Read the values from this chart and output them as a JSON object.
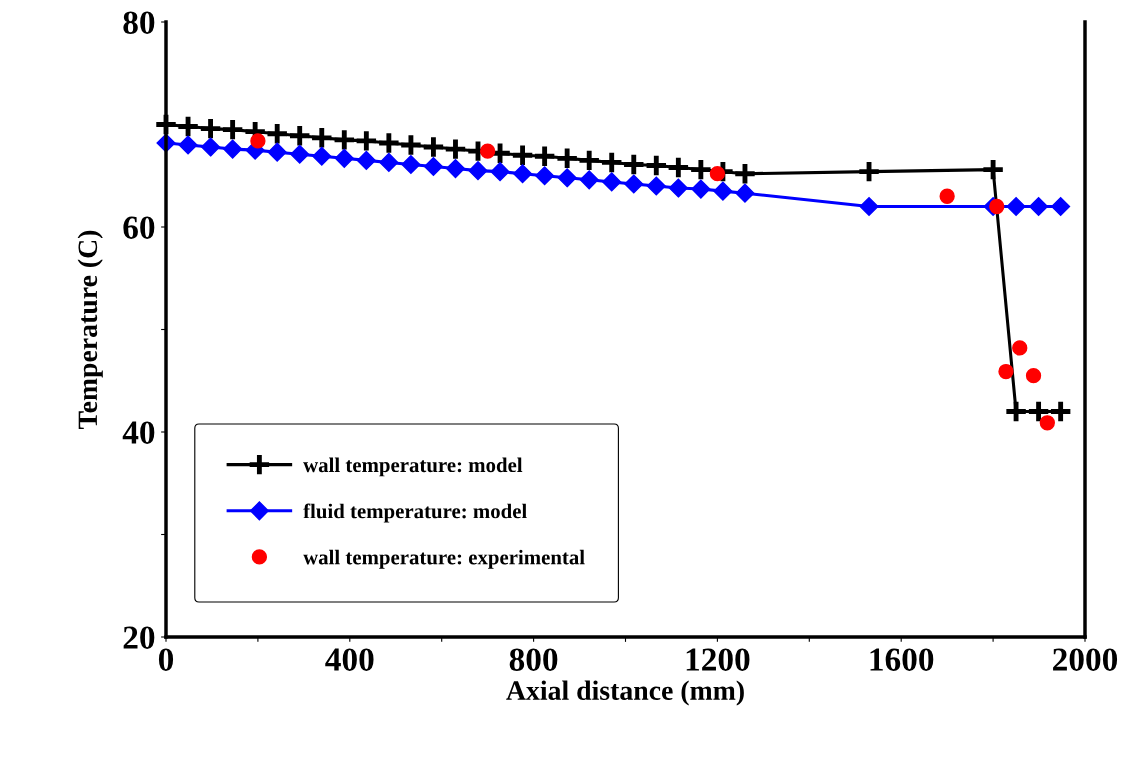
{
  "chart_data": {
    "type": "line",
    "xlabel": "Axial distance (mm)",
    "ylabel": "Temperature (C)",
    "xlim": [
      0,
      2000
    ],
    "ylim": [
      20,
      80
    ],
    "xticks": [
      0,
      {
        "value": 200,
        "label": null
      },
      400,
      {
        "value": 600,
        "label": null
      },
      800,
      {
        "value": 1000,
        "label": null
      },
      1200,
      {
        "value": 1400,
        "label": null
      },
      1600,
      {
        "value": 1800,
        "label": null
      },
      2000
    ],
    "yticks": [
      20,
      {
        "value": 30,
        "label": null
      },
      40,
      {
        "value": 50,
        "label": null
      },
      60,
      {
        "value": 70,
        "label": null
      },
      80
    ],
    "grid": false,
    "legend": "bottom left",
    "series": [
      {
        "name": "wall temperature: model",
        "color": "#000000",
        "marker": "cross",
        "x": [
          0,
          48,
          97,
          145,
          194,
          242,
          291,
          339,
          388,
          436,
          485,
          533,
          582,
          630,
          679,
          727,
          776,
          824,
          873,
          921,
          970,
          1018,
          1067,
          1115,
          1164,
          1212,
          1260,
          1530,
          1800,
          1850,
          1899,
          1947
        ],
        "values": [
          70.0,
          69.8,
          69.6,
          69.5,
          69.3,
          69.1,
          68.9,
          68.7,
          68.5,
          68.4,
          68.2,
          68.0,
          67.8,
          67.6,
          67.4,
          67.2,
          67.0,
          66.9,
          66.7,
          66.5,
          66.3,
          66.1,
          66.0,
          65.8,
          65.6,
          65.4,
          65.2,
          65.4,
          65.6,
          42.0,
          42.0,
          42.0
        ]
      },
      {
        "name": "fluid temperature: model",
        "color": "#0000ff",
        "marker": "diamond",
        "x": [
          0,
          48,
          97,
          145,
          194,
          242,
          291,
          339,
          388,
          436,
          485,
          533,
          582,
          630,
          679,
          727,
          776,
          824,
          873,
          921,
          970,
          1018,
          1067,
          1115,
          1164,
          1212,
          1260,
          1530,
          1800,
          1850,
          1899,
          1947
        ],
        "values": [
          68.2,
          68.0,
          67.8,
          67.6,
          67.5,
          67.3,
          67.1,
          66.9,
          66.7,
          66.5,
          66.3,
          66.1,
          65.9,
          65.7,
          65.5,
          65.4,
          65.2,
          65.0,
          64.8,
          64.6,
          64.4,
          64.2,
          64.0,
          63.8,
          63.7,
          63.5,
          63.3,
          62.0,
          62.0,
          62.0,
          62.0,
          62.0
        ]
      },
      {
        "name": "wall temperature: experimental",
        "color": "#ff0000",
        "type": "scatter",
        "marker": "circle",
        "x": [
          200,
          700,
          1200,
          1700,
          1808,
          1828,
          1858,
          1888,
          1918
        ],
        "values": [
          68.4,
          67.4,
          65.2,
          63.0,
          62.0,
          45.9,
          48.2,
          45.5,
          40.9
        ]
      }
    ]
  }
}
